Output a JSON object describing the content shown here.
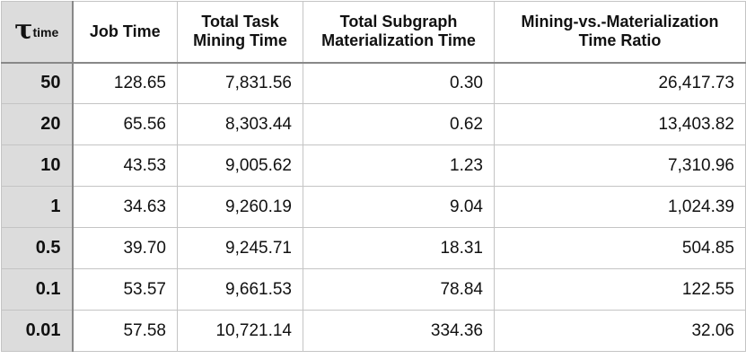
{
  "table": {
    "corner": {
      "symbol": "τ",
      "subscript": "time"
    },
    "columns": [
      {
        "label": "Job Time"
      },
      {
        "label": "Total Task Mining Time"
      },
      {
        "label": "Total Subgraph Materialization Time"
      },
      {
        "label": "Mining-vs.-Materialization Time Ratio"
      }
    ],
    "rows": [
      {
        "tau": "50",
        "cells": [
          "128.65",
          "7,831.56",
          "0.30",
          "26,417.73"
        ]
      },
      {
        "tau": "20",
        "cells": [
          "65.56",
          "8,303.44",
          "0.62",
          "13,403.82"
        ]
      },
      {
        "tau": "10",
        "cells": [
          "43.53",
          "9,005.62",
          "1.23",
          "7,310.96"
        ]
      },
      {
        "tau": "1",
        "cells": [
          "34.63",
          "9,260.19",
          "9.04",
          "1,024.39"
        ]
      },
      {
        "tau": "0.5",
        "cells": [
          "39.70",
          "9,245.71",
          "18.31",
          "504.85"
        ]
      },
      {
        "tau": "0.1",
        "cells": [
          "53.57",
          "9,661.53",
          "78.84",
          "122.55"
        ]
      },
      {
        "tau": "0.01",
        "cells": [
          "57.58",
          "10,721.14",
          "334.36",
          "32.06"
        ]
      }
    ]
  }
}
